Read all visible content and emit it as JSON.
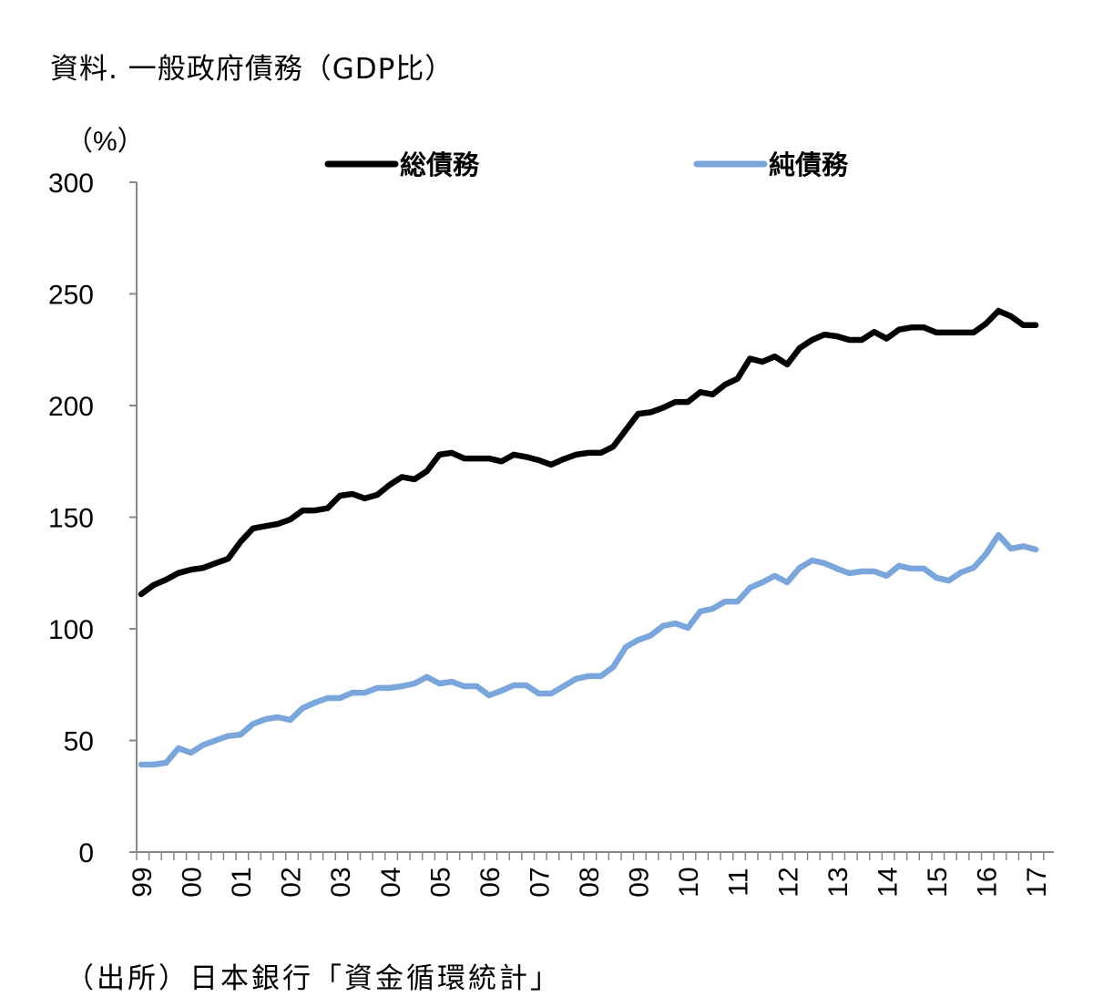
{
  "chart_data": {
    "type": "line",
    "title": "資料. 一般政府債務（GDP比）",
    "ylabel": "（%）",
    "xlabel": "",
    "ylim": [
      0,
      300
    ],
    "yticks": [
      "0",
      "50",
      "100",
      "150",
      "200",
      "250",
      "300"
    ],
    "xtick_labels": [
      "99",
      "00",
      "01",
      "02",
      "03",
      "04",
      "05",
      "06",
      "07",
      "08",
      "09",
      "10",
      "11",
      "12",
      "13",
      "14",
      "15",
      "16",
      "17"
    ],
    "x_frequency": "quarterly",
    "x_start": "1999Q1",
    "x_end": "2017Q1",
    "legend_position": "top",
    "grid": false,
    "series": [
      {
        "name": "総債務",
        "color": "#000000",
        "values": [
          115.5,
          119.6,
          122,
          125,
          126.5,
          127.3,
          129.4,
          131.4,
          139,
          145,
          146,
          147,
          149,
          153,
          153,
          154,
          159.6,
          160.4,
          158.4,
          160,
          164.5,
          168,
          167,
          170.6,
          178,
          178.8,
          176.3,
          176.3,
          176.3,
          175,
          178,
          177,
          175.5,
          173.5,
          176,
          178,
          178.8,
          178.8,
          181.6,
          189,
          196.3,
          197,
          199,
          201.6,
          201.6,
          206,
          205,
          209.4,
          212,
          221,
          219.6,
          222,
          218.4,
          225.7,
          229.4,
          231.8,
          231,
          229.4,
          229.4,
          233,
          230,
          234,
          235,
          235,
          232.7,
          232.7,
          232.7,
          232.7,
          236.7,
          242.4,
          240,
          236,
          236
        ]
      },
      {
        "name": "純債務",
        "color": "#7aa6dc",
        "values": [
          39.2,
          39.2,
          40,
          46.5,
          44.5,
          48,
          50,
          52,
          52.6,
          57.4,
          59.5,
          60.4,
          59.2,
          64.5,
          67,
          69,
          69,
          71.4,
          71.4,
          73.5,
          73.5,
          74.3,
          75.5,
          78.4,
          75.5,
          76.3,
          74.3,
          74.3,
          70.2,
          72.3,
          74.7,
          74.7,
          71,
          71,
          74.3,
          77.6,
          78.8,
          78.8,
          82.9,
          91.8,
          95,
          97,
          101.3,
          102.4,
          100.4,
          107.8,
          109,
          112.2,
          112.2,
          118.4,
          120.8,
          123.7,
          120.8,
          127.3,
          130.6,
          129.4,
          127,
          124.9,
          125.7,
          125.7,
          123.7,
          128.2,
          127,
          127,
          122.9,
          121.6,
          125.3,
          127.3,
          133.5,
          142,
          135.9,
          137,
          135.5
        ]
      }
    ]
  },
  "source": "（出所）日本銀行「資金循環統計」"
}
